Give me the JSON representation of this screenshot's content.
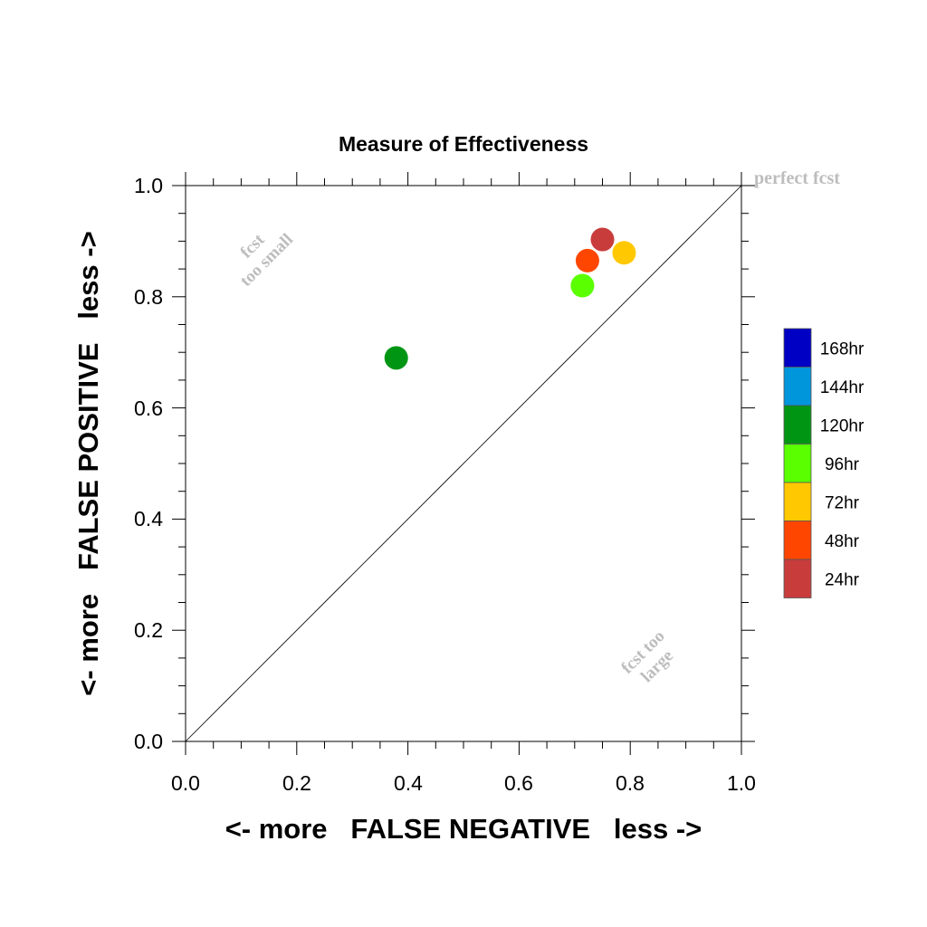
{
  "chart_data": {
    "type": "scatter",
    "title": "Measure of Effectiveness",
    "xlabel": "<- more   FALSE NEGATIVE   less ->",
    "ylabel": "<- more   FALSE POSITIVE   less ->",
    "xlim": [
      0.0,
      1.0
    ],
    "ylim": [
      0.0,
      1.0
    ],
    "xticks": [
      "0.0",
      "0.2",
      "0.4",
      "0.6",
      "0.8",
      "1.0"
    ],
    "yticks": [
      "0.0",
      "0.2",
      "0.4",
      "0.6",
      "0.8",
      "1.0"
    ],
    "grid": false,
    "reference_line": "diagonal y = x",
    "annotations": {
      "perfect": "perfect fcst",
      "small_1": "fcst",
      "small_2": "too small",
      "large_1": "fcst too",
      "large_2": "large"
    },
    "legend_placement": "right",
    "legend": [
      {
        "label": "168hr",
        "color": "#0000c4"
      },
      {
        "label": "144hr",
        "color": "#0096dc"
      },
      {
        "label": "120hr",
        "color": "#009614"
      },
      {
        "label": "96hr",
        "color": "#5aff00"
      },
      {
        "label": "72hr",
        "color": "#ffc800"
      },
      {
        "label": "48hr",
        "color": "#ff4600"
      },
      {
        "label": "24hr",
        "color": "#c83c3c"
      }
    ],
    "points": [
      {
        "label": "24hr",
        "x": 0.75,
        "y": 0.903,
        "color": "#c83c3c"
      },
      {
        "label": "48hr",
        "x": 0.723,
        "y": 0.865,
        "color": "#ff4600"
      },
      {
        "label": "72hr",
        "x": 0.789,
        "y": 0.879,
        "color": "#ffc800"
      },
      {
        "label": "96hr",
        "x": 0.714,
        "y": 0.82,
        "color": "#5aff00"
      },
      {
        "label": "120hr",
        "x": 0.379,
        "y": 0.69,
        "color": "#009614"
      }
    ]
  }
}
